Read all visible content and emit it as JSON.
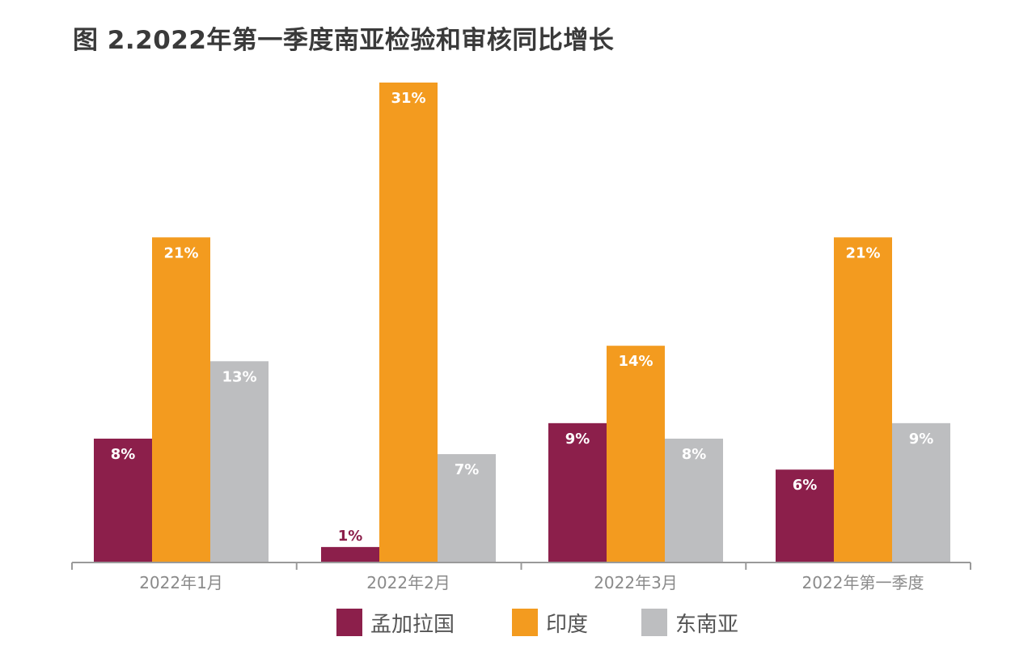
{
  "colors": {
    "bangladesh": "#8C1F4B",
    "india": "#F39B1F",
    "southeast_asia": "#BDBEC0",
    "axis": "#9a9a9a",
    "title": "#3a3a3a"
  },
  "chart_data": {
    "type": "bar",
    "title": "图 2.2022年第一季度南亚检验和审核同比增长",
    "categories": [
      "2022年1月",
      "2022年2月",
      "2022年3月",
      "2022年第一季度"
    ],
    "series": [
      {
        "name": "孟加拉国",
        "color_key": "bangladesh",
        "values": [
          8,
          1,
          9,
          6
        ],
        "labels": [
          "8%",
          "1%",
          "9%",
          "6%"
        ]
      },
      {
        "name": "印度",
        "color_key": "india",
        "values": [
          21,
          31,
          14,
          21
        ],
        "labels": [
          "21%",
          "31%",
          "14%",
          "21%"
        ]
      },
      {
        "name": "东南亚",
        "color_key": "southeast_asia",
        "values": [
          13,
          7,
          8,
          9
        ],
        "labels": [
          "13%",
          "7%",
          "8%",
          "9%"
        ]
      }
    ],
    "xlabel": "",
    "ylabel": "",
    "ylim": [
      0,
      31
    ],
    "grid": false,
    "legend_position": "bottom"
  }
}
